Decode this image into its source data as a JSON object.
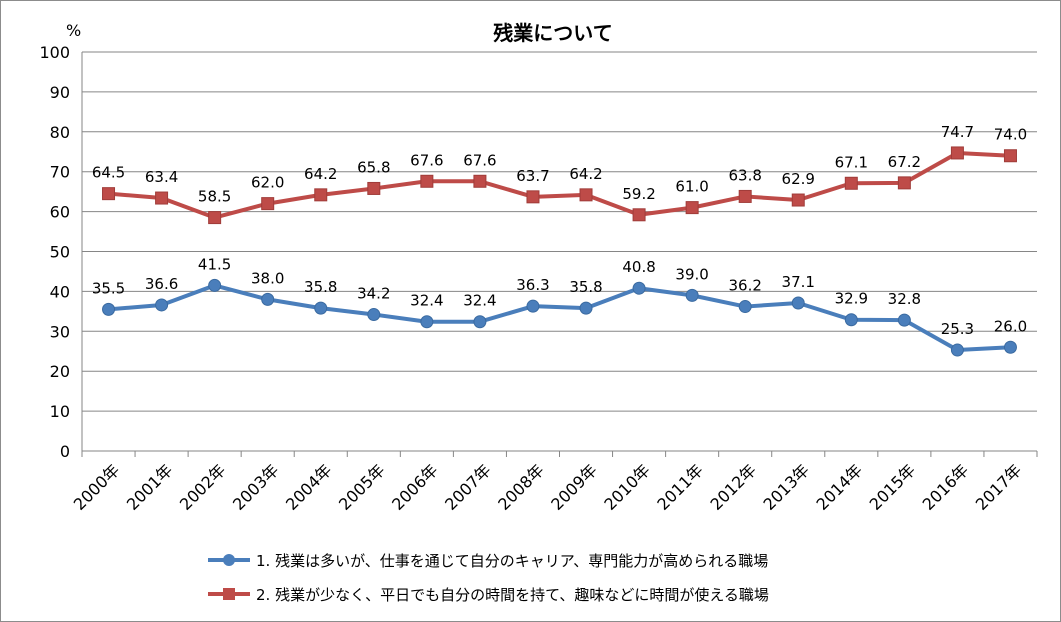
{
  "chart_data": {
    "type": "line",
    "title": "残業について",
    "ylabel": "%",
    "xlabel": "",
    "ylim": [
      0,
      100
    ],
    "yticks": [
      0,
      10,
      20,
      30,
      40,
      50,
      60,
      70,
      80,
      90,
      100
    ],
    "grid": true,
    "legend_position": "bottom",
    "categories": [
      "2000年",
      "2001年",
      "2002年",
      "2003年",
      "2004年",
      "2005年",
      "2006年",
      "2007年",
      "2008年",
      "2009年",
      "2010年",
      "2011年",
      "2012年",
      "2013年",
      "2014年",
      "2015年",
      "2016年",
      "2017年"
    ],
    "series": [
      {
        "name": "1.  残業は多いが、仕事を通じて自分のキャリア、専門能力が高められる職場",
        "marker": "circle",
        "color": "#4a7ebb",
        "values": [
          35.5,
          36.6,
          41.5,
          38.0,
          35.8,
          34.2,
          32.4,
          32.4,
          36.3,
          35.8,
          40.8,
          39.0,
          36.2,
          37.1,
          32.9,
          32.8,
          25.3,
          26.0
        ]
      },
      {
        "name": "2.  残業が少なく、平日でも自分の時間を持て、趣味などに時間が使える職場",
        "marker": "square",
        "color": "#be4b48",
        "values": [
          64.5,
          63.4,
          58.5,
          62.0,
          64.2,
          65.8,
          67.6,
          67.6,
          63.7,
          64.2,
          59.2,
          61.0,
          63.8,
          62.9,
          67.1,
          67.2,
          74.7,
          74.0
        ]
      }
    ]
  }
}
